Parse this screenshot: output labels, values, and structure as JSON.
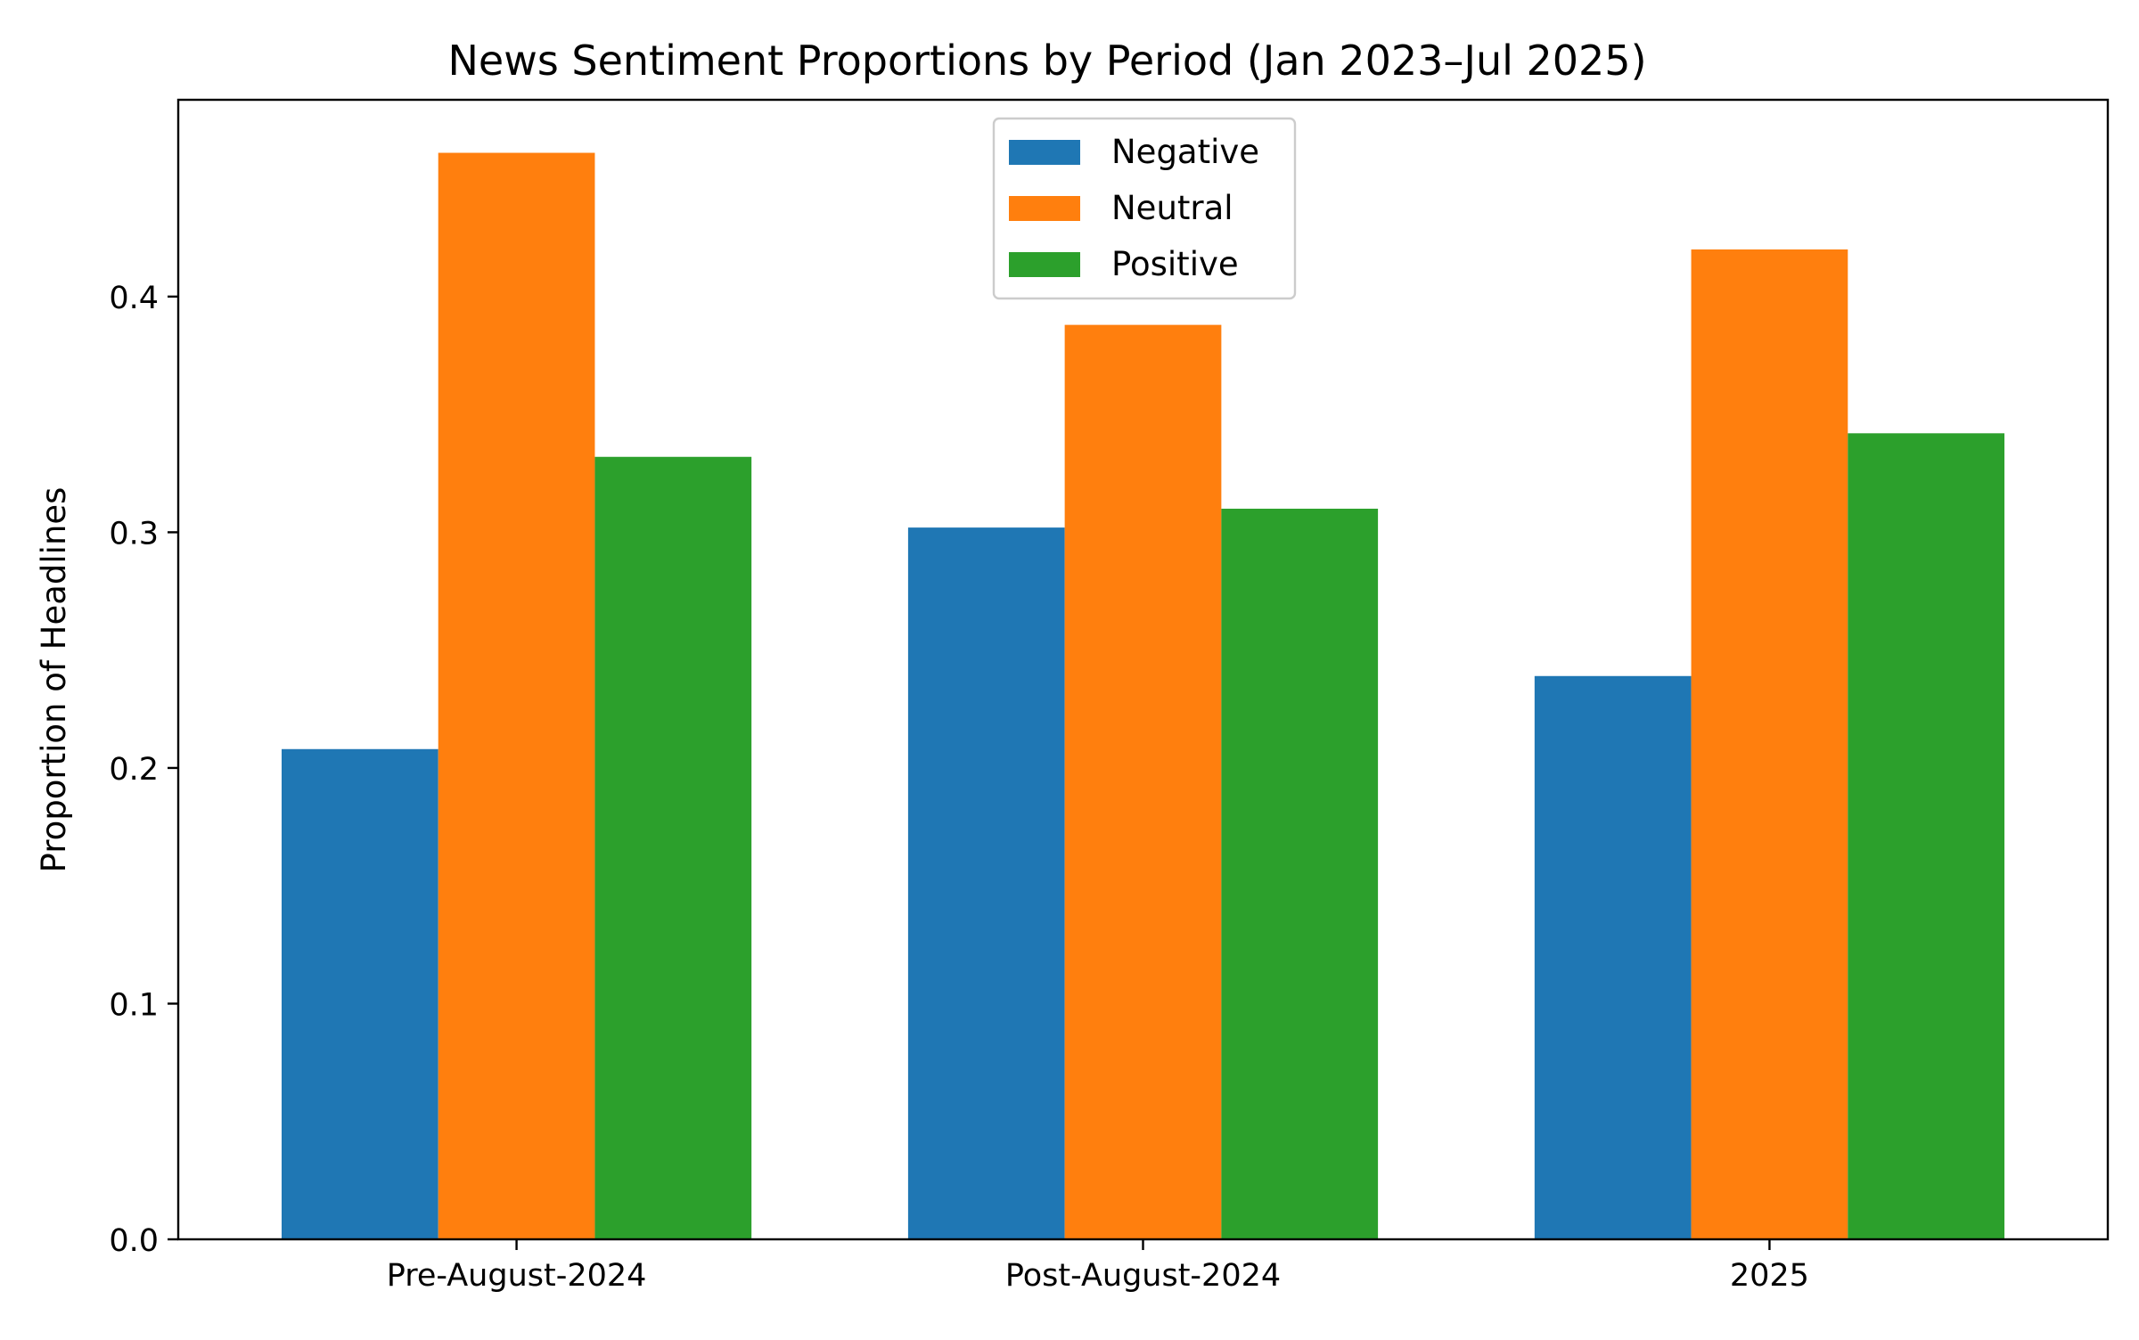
{
  "chart_data": {
    "type": "bar",
    "title": "News Sentiment Proportions by Period (Jan 2023–Jul 2025)",
    "xlabel": "",
    "ylabel": "Proportion of Headlines",
    "categories": [
      "Pre-August-2024",
      "Post-August-2024",
      "2025"
    ],
    "series": [
      {
        "name": "Negative",
        "color": "#1f77b4",
        "values": [
          0.208,
          0.302,
          0.239
        ]
      },
      {
        "name": "Neutral",
        "color": "#ff7f0e",
        "values": [
          0.461,
          0.388,
          0.42
        ]
      },
      {
        "name": "Positive",
        "color": "#2ca02c",
        "values": [
          0.332,
          0.31,
          0.342
        ]
      }
    ],
    "ylim": [
      0,
      0.4835
    ],
    "yticks": [
      0.0,
      0.1,
      0.2,
      0.3,
      0.4
    ],
    "ytick_labels": [
      "0.0",
      "0.1",
      "0.2",
      "0.3",
      "0.4"
    ],
    "grid": false,
    "legend_position": "top-center"
  }
}
